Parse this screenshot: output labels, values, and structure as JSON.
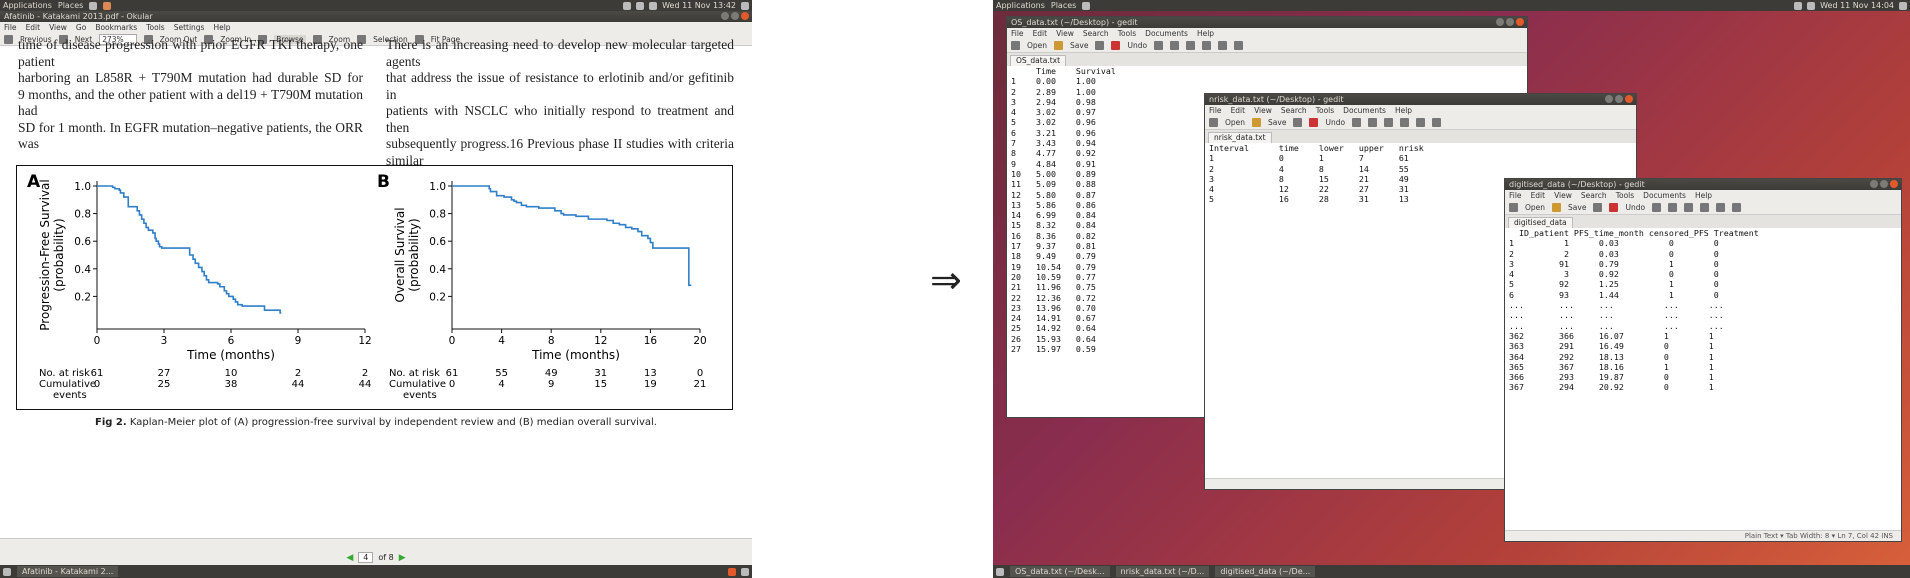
{
  "left": {
    "panel": {
      "apps": "Applications",
      "places": "Places",
      "clock": "Wed 11 Nov 13:42"
    },
    "title": "Afatinib - Katakami 2013.pdf - Okular",
    "menu": [
      "File",
      "Edit",
      "View",
      "Go",
      "Bookmarks",
      "Tools",
      "Settings",
      "Help"
    ],
    "toolbar": {
      "previous": "Previous",
      "next": "Next",
      "zoom": "273%",
      "browse": "Browse",
      "zoom_tool": "Zoom",
      "zoom_out": "Zoom Out",
      "zoom_in": "Zoom In",
      "selection": "Selection",
      "fit_page": "Fit Page"
    },
    "text_left": [
      "time of disease progression with prior EGFR TKI therapy, one patient",
      "harboring an L858R + T790M mutation had durable SD for",
      "9 months, and the other patient with a del19 + T790M mutation had",
      "SD for 1 month. In EGFR mutation–negative patients, the ORR was"
    ],
    "text_right": [
      "There is an increasing need to develop new molecular targeted agents",
      "that address the issue of resistance to erlotinib and/or gefitinib in",
      "patients with NSCLC who initially respond to treatment and then",
      "subsequently progress.16 Previous phase II studies with criteria similar"
    ],
    "caption_bold": "Fig 2.",
    "caption": "Kaplan-Meier plot of (A) progression-free survival by independent review and (B) median overall survival.",
    "page_current": "4",
    "page_of": "of 8",
    "taskbar_item": "Afatinib - Katakami 2..."
  },
  "chart_data": [
    {
      "type": "line",
      "panel_label": "A",
      "ylabel": "Progression-Free Survival (probability)",
      "xlabel": "Time (months)",
      "xlim": [
        0,
        12
      ],
      "ylim": [
        0,
        1
      ],
      "xticks": [
        0,
        3,
        6,
        9,
        12
      ],
      "yticks": [
        0.2,
        0.4,
        0.6,
        0.8,
        1.0
      ],
      "step_x": [
        0,
        0.55,
        0.7,
        0.8,
        1,
        1.05,
        1.2,
        1.4,
        1.8,
        1.9,
        2,
        2.1,
        2.2,
        2.3,
        2.5,
        2.6,
        2.65,
        2.75,
        2.8,
        2.9,
        3.5,
        4.1,
        4.15,
        4.3,
        4.4,
        4.55,
        4.7,
        4.8,
        4.9,
        5,
        5.2,
        5.4,
        5.5,
        5.7,
        5.8,
        5.9,
        6.1,
        6.2,
        6.3,
        6.5,
        7,
        7.5,
        7.9,
        8.2,
        8.25
      ],
      "step_y": [
        1,
        1,
        0.99,
        0.98,
        0.97,
        0.95,
        0.92,
        0.85,
        0.82,
        0.79,
        0.76,
        0.73,
        0.7,
        0.68,
        0.66,
        0.62,
        0.6,
        0.58,
        0.56,
        0.55,
        0.55,
        0.55,
        0.5,
        0.47,
        0.44,
        0.41,
        0.38,
        0.35,
        0.32,
        0.3,
        0.3,
        0.29,
        0.27,
        0.24,
        0.22,
        0.2,
        0.18,
        0.16,
        0.14,
        0.13,
        0.13,
        0.1,
        0.1,
        0.08,
        0.08
      ],
      "risk_label": "No. at risk",
      "cum_label": "Cumulative",
      "cum_label2": "events",
      "risk_x": [
        0,
        3,
        6,
        9,
        12
      ],
      "at_risk": [
        "61",
        "27",
        "10",
        "2",
        "2"
      ],
      "cumulative": [
        "0",
        "25",
        "38",
        "44",
        "44"
      ]
    },
    {
      "type": "line",
      "panel_label": "B",
      "ylabel": "Overall Survival (probability)",
      "xlabel": "Time (months)",
      "xlim": [
        0,
        20
      ],
      "ylim": [
        0,
        1
      ],
      "xticks": [
        0,
        4,
        8,
        12,
        16,
        20
      ],
      "yticks": [
        0.2,
        0.4,
        0.6,
        0.8,
        1.0
      ],
      "step_x": [
        0,
        2.9,
        3,
        3.1,
        3.6,
        4.2,
        4.8,
        5,
        5.2,
        5.6,
        6,
        6.5,
        7,
        7.5,
        8.3,
        8.8,
        9,
        9.5,
        10,
        10.5,
        11,
        11.5,
        12.5,
        13,
        13.5,
        14,
        14.5,
        15,
        15.3,
        15.8,
        16,
        16.2,
        18.9,
        19.1,
        19.3
      ],
      "step_y": [
        1,
        1,
        0.98,
        0.96,
        0.93,
        0.92,
        0.9,
        0.89,
        0.88,
        0.86,
        0.85,
        0.85,
        0.84,
        0.84,
        0.82,
        0.8,
        0.79,
        0.79,
        0.78,
        0.78,
        0.76,
        0.76,
        0.75,
        0.73,
        0.72,
        0.7,
        0.69,
        0.67,
        0.64,
        0.62,
        0.59,
        0.55,
        0.55,
        0.28,
        0.28
      ],
      "risk_label": "No. at risk",
      "cum_label": "Cumulative",
      "cum_label2": "events",
      "risk_x": [
        0,
        4,
        8,
        12,
        16,
        20
      ],
      "at_risk": [
        "61",
        "55",
        "49",
        "31",
        "13",
        "0"
      ],
      "cumulative": [
        "0",
        "4",
        "9",
        "15",
        "19",
        "21"
      ]
    }
  ],
  "right": {
    "panel": {
      "apps": "Applications",
      "places": "Places",
      "clock": "Wed 11 Nov 14:04"
    },
    "gedit_menu": [
      "File",
      "Edit",
      "View",
      "Search",
      "Tools",
      "Documents",
      "Help"
    ],
    "tb": {
      "open": "Open",
      "save": "Save",
      "undo": "Undo"
    },
    "os": {
      "title": "OS_data.txt (~/Desktop) - gedit",
      "tab": "OS_data.txt",
      "header": "     Time    Survival",
      "rows": [
        "1    0.00    1.00",
        "2    2.89    1.00",
        "3    2.94    0.98",
        "4    3.02    0.97",
        "5    3.02    0.96",
        "6    3.21    0.96",
        "7    3.43    0.94",
        "8    4.77    0.92",
        "9    4.84    0.91",
        "10   5.00    0.89",
        "11   5.09    0.88",
        "12   5.80    0.87",
        "13   5.86    0.86",
        "14   6.99    0.84",
        "15   8.32    0.84",
        "16   8.36    0.82",
        "17   9.37    0.81",
        "18   9.49    0.79",
        "19   10.54   0.79",
        "20   10.59   0.77",
        "21   11.96   0.75",
        "22   12.36   0.72",
        "23   13.96   0.70",
        "24   14.91   0.67",
        "25   14.92   0.64",
        "26   15.93   0.64",
        "27   15.97   0.59"
      ]
    },
    "nrisk": {
      "title": "nrisk_data.txt (~/Desktop) - gedit",
      "tab": "nrisk_data.txt",
      "header": "Interval      time    lower   upper   nrisk",
      "rows": [
        "1             0       1       7       61",
        "2             4       8       14      55",
        "3             8       15      21      49",
        "4             12      22      27      31",
        "5             16      28      31      13"
      ],
      "status": "Plain Text ▾   Tab W"
    },
    "digit": {
      "title": "digitised_data (~/Desktop) - gedit",
      "tab": "digitised_data",
      "header": "  ID_patient PFS_time_month censored_PFS Treatment",
      "rows": [
        "1          1      0.03          0        0",
        "2          2      0.03          0        0",
        "3         91      0.79          1        0",
        "4          3      0.92          0        0",
        "5         92      1.25          1        0",
        "6         93      1.44          1        0",
        "...       ...     ...          ...      ...",
        "...       ...     ...          ...      ...",
        "...       ...     ...          ...      ...",
        "362       366     16.07        1        1",
        "363       291     16.49        0        1",
        "364       292     18.13        0        1",
        "365       367     18.16        1        1",
        "366       293     19.87        0        1",
        "367       294     20.92        0        1"
      ],
      "status": "Plain Text ▾    Tab Width: 8 ▾    Ln 7, Col 42    INS"
    },
    "taskbar": [
      "OS_data.txt (~/Desk...",
      "nrisk_data.txt (~/D...",
      "digitised_data (~/De..."
    ]
  },
  "arrow": "⇒"
}
